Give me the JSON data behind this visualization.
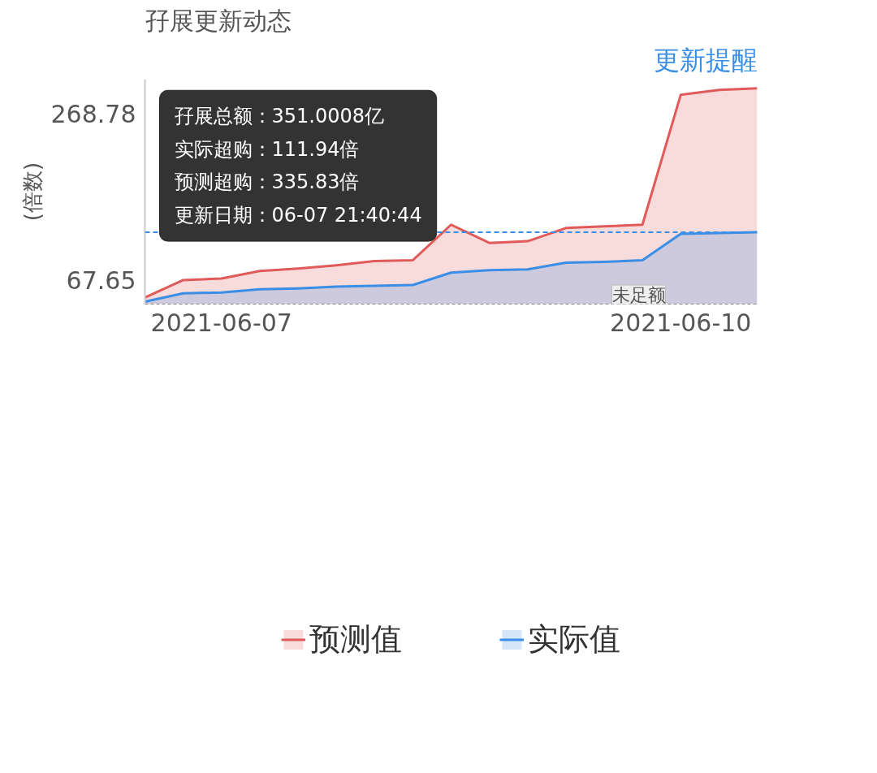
{
  "chart_data": {
    "type": "area",
    "title": "孖展更新动态",
    "ylabel": "(倍数)",
    "categories": [
      null,
      null,
      "2021-06-07",
      null,
      null,
      null,
      null,
      null,
      null,
      null,
      null,
      null,
      null,
      null,
      "2021-06-10",
      null,
      null
    ],
    "series": [
      {
        "name": "预测值",
        "color": "#e05a5a",
        "values": [
          47,
          68,
          70,
          79,
          82,
          86,
          91,
          92,
          135,
          113,
          115,
          131,
          133,
          135,
          292,
          298,
          300
        ]
      },
      {
        "name": "实际值",
        "color": "#3a8ee6",
        "values": [
          42,
          52,
          53,
          57,
          58,
          60,
          61,
          62,
          77,
          80,
          81,
          89,
          90,
          92,
          124,
          125,
          126
        ]
      }
    ],
    "ylim": [
      39,
      311
    ],
    "yticks": [
      67.65,
      268.78
    ],
    "grid": false,
    "legend": "bottom",
    "ref_lines": [
      {
        "axis": "y",
        "value": 126,
        "color": "#3a8ee6",
        "line_style": "dashed"
      }
    ],
    "annotations": [
      "孖展总额：351.0008亿",
      "实际超购：111.94倍",
      "预测超购：335.83倍",
      "更新日期：06-07 21:40:44",
      "未足额",
      "更新提醒"
    ]
  }
}
